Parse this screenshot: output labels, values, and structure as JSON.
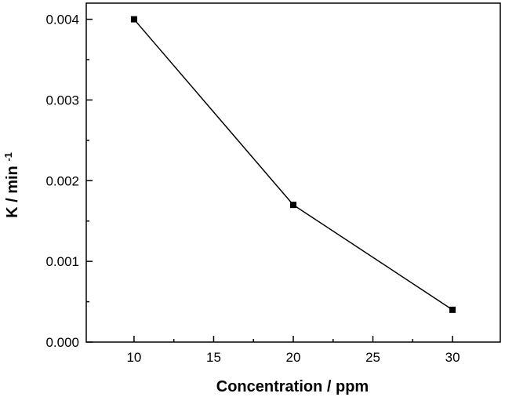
{
  "chart_data": {
    "type": "line",
    "title": "",
    "xlabel": "Concentration / ppm",
    "ylabel_main": "K / min",
    "ylabel_sup": "-1",
    "xlim": [
      7,
      33
    ],
    "ylim": [
      0.0,
      0.0042
    ],
    "xticks": [
      10,
      15,
      20,
      25,
      30
    ],
    "xtick_labels": [
      "10",
      "15",
      "20",
      "25",
      "30"
    ],
    "yticks": [
      0.0,
      0.001,
      0.002,
      0.003,
      0.004
    ],
    "ytick_labels": [
      "0.000",
      "0.001",
      "0.002",
      "0.003",
      "0.004"
    ],
    "grid": false,
    "legend": "none",
    "series": [
      {
        "x": [
          10,
          20,
          30
        ],
        "values": [
          0.004,
          0.0017,
          0.0004
        ],
        "marker": "square",
        "color": "#000000"
      }
    ]
  }
}
